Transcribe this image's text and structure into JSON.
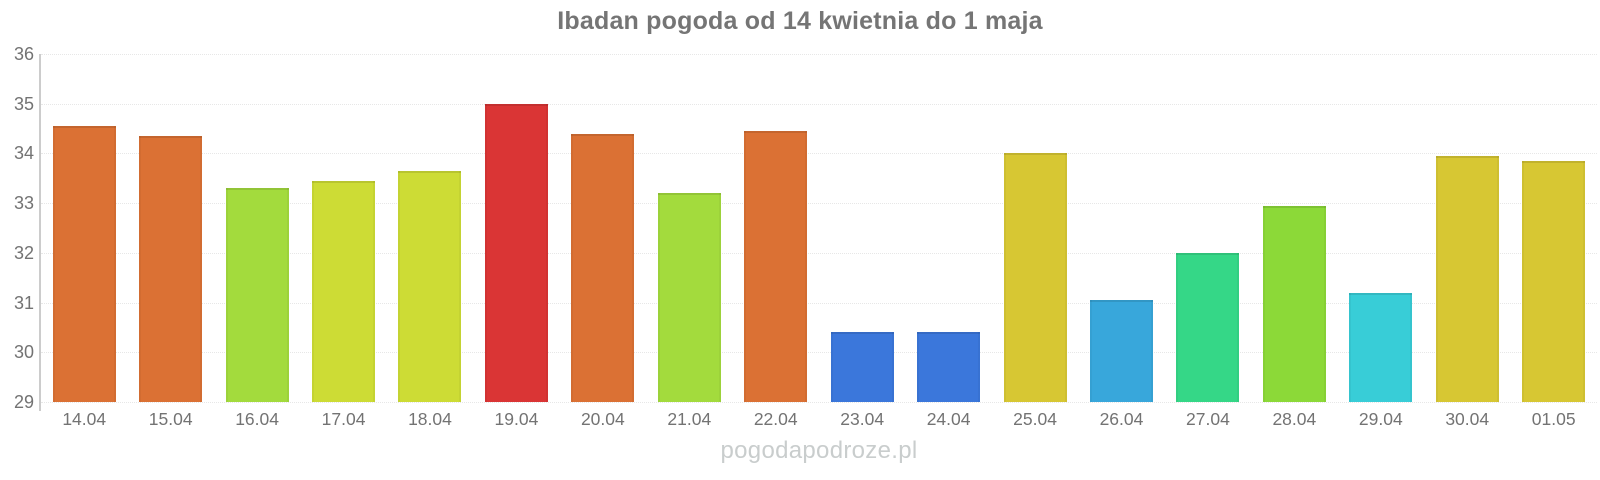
{
  "chart_data": {
    "type": "bar",
    "title": "Ibadan pogoda od 14 kwietnia do 1 maja",
    "xlabel": "",
    "ylabel": "",
    "ylim": [
      29,
      36
    ],
    "yticks": [
      29,
      30,
      31,
      32,
      33,
      34,
      35,
      36
    ],
    "grid": true,
    "legend": false,
    "categories": [
      "14.04",
      "15.04",
      "16.04",
      "17.04",
      "18.04",
      "19.04",
      "20.04",
      "21.04",
      "22.04",
      "23.04",
      "24.04",
      "25.04",
      "26.04",
      "27.04",
      "28.04",
      "29.04",
      "30.04",
      "01.05"
    ],
    "values": [
      34.55,
      34.35,
      33.3,
      33.45,
      33.65,
      35.0,
      34.4,
      33.2,
      34.45,
      30.4,
      30.4,
      34.0,
      31.05,
      32.0,
      32.95,
      31.2,
      33.95,
      33.85
    ],
    "bar_colors": [
      "#db7134",
      "#db7134",
      "#a3db3d",
      "#cddc35",
      "#cddc35",
      "#da3535",
      "#db7134",
      "#a3db3d",
      "#db7134",
      "#3b77db",
      "#3b77db",
      "#d7c733",
      "#38a7db",
      "#35d787",
      "#8cd938",
      "#38cdd7",
      "#d7c733",
      "#d7c733"
    ]
  },
  "watermark": "pogodapodroze.pl",
  "style": {
    "title_color": "#757575",
    "axis_label_color": "#737373",
    "grid_color": "#e7e7e7",
    "axis_line_color": "#cccccc",
    "watermark_color": "#c9cdcd",
    "background": "#ffffff"
  }
}
